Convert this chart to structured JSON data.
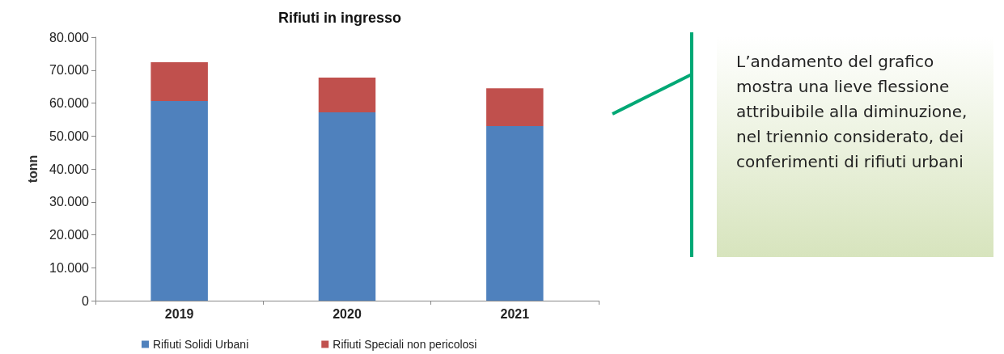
{
  "chart_data": {
    "type": "bar",
    "title": "Rifiuti in ingresso",
    "ylabel": "tonn",
    "categories": [
      "2019",
      "2020",
      "2021"
    ],
    "stacked": true,
    "series": [
      {
        "name": "Rifiuti Solidi Urbani",
        "color": "#4f81bd",
        "values": [
          60600,
          57200,
          53000
        ]
      },
      {
        "name": "Rifiuti Speciali non pericolosi",
        "color": "#c0504d",
        "values": [
          11800,
          10500,
          11500
        ]
      }
    ],
    "ylim": [
      0,
      80000
    ],
    "yticks": [
      0,
      {
        "value": 10000,
        "label": "10.000"
      },
      {
        "value": 20000,
        "label": "20.000"
      },
      {
        "value": 30000,
        "label": "30.000"
      },
      {
        "value": 40000,
        "label": "40.000"
      },
      {
        "value": 50000,
        "label": "50.000"
      },
      {
        "value": 60000,
        "label": "60.000"
      },
      {
        "value": 70000,
        "label": "70.000"
      },
      {
        "value": 80000,
        "label": "80.000"
      }
    ],
    "grid": false,
    "legend": "bottom",
    "annotations": [
      "L’andamento del grafico mostra una lieve flessione attribuibile alla diminuzione, nel triennio considerato, dei conferimenti di rifiuti urbani"
    ]
  }
}
